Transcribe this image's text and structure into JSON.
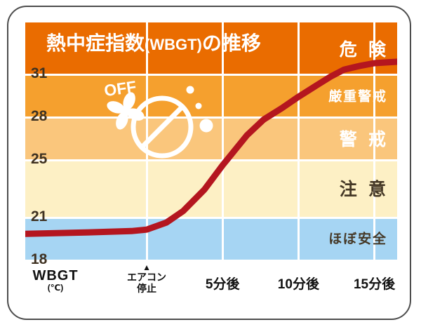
{
  "title": {
    "part1": "熱中症指数",
    "part2": "(WBGT)",
    "part3": "の推移"
  },
  "fan_icon": {
    "label": "OFF"
  },
  "x_axis": {
    "axis_name": "WBGT",
    "axis_unit": "(℃)",
    "event": {
      "marker": "▲",
      "line1": "エアコン",
      "line2": "停止",
      "t": 0
    },
    "ticks": [
      {
        "t": 5,
        "label": "5分後"
      },
      {
        "t": 10,
        "label": "10分後"
      },
      {
        "t": 15,
        "label": "15分後"
      }
    ]
  },
  "chart_data": {
    "type": "line",
    "title": "熱中症指数(WBGT)の推移",
    "axis": {
      "xmin": -8,
      "xmax": 16.5,
      "ymin": 18,
      "ymax": 34.6
    },
    "y_ticks": [
      31,
      28,
      25,
      21,
      18
    ],
    "x_gridlines": [
      0,
      5,
      10,
      15
    ],
    "zones": [
      {
        "label": "危険",
        "range": [
          31,
          34.6
        ],
        "color": "#ea6c00",
        "text_color": "#ffffff"
      },
      {
        "label": "厳重警戒",
        "range": [
          28,
          31
        ],
        "color": "#f5a02e",
        "text_color": "#ffffff"
      },
      {
        "label": "警戒",
        "range": [
          25,
          28
        ],
        "color": "#fac67c",
        "text_color": "#ffffff"
      },
      {
        "label": "注意",
        "range": [
          21,
          25
        ],
        "color": "#fdf0c5",
        "text_color": "#453826"
      },
      {
        "label": "ほぼ安全",
        "range": [
          18,
          21
        ],
        "color": "#a6d5f3",
        "text_color": "#453826"
      }
    ],
    "series": [
      {
        "name": "WBGT",
        "color": "#b4161f",
        "points": [
          [
            -8,
            19.8
          ],
          [
            -4,
            19.9
          ],
          [
            -1,
            20.0
          ],
          [
            0,
            20.1
          ],
          [
            1.3,
            20.6
          ],
          [
            2.4,
            21.4
          ],
          [
            3.8,
            22.9
          ],
          [
            5,
            24.6
          ],
          [
            6.6,
            26.7
          ],
          [
            7.7,
            27.8
          ],
          [
            8.9,
            28.6
          ],
          [
            10,
            29.4
          ],
          [
            11.2,
            30.2
          ],
          [
            12.1,
            30.8
          ],
          [
            13,
            31.3
          ],
          [
            14,
            31.55
          ],
          [
            15,
            31.75
          ],
          [
            16.5,
            31.85
          ]
        ]
      }
    ]
  }
}
